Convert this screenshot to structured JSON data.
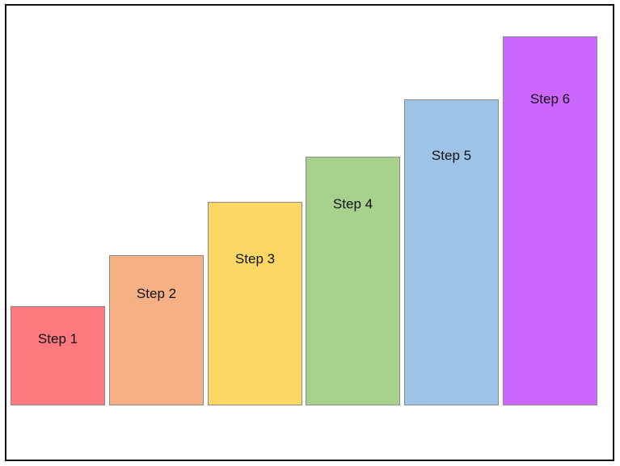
{
  "steps": [
    {
      "label": "Step 1",
      "color": "#fe7a7f"
    },
    {
      "label": "Step 2",
      "color": "#f5b083"
    },
    {
      "label": "Step 3",
      "color": "#fed866"
    },
    {
      "label": "Step 4",
      "color": "#a8d18d"
    },
    {
      "label": "Step 5",
      "color": "#9dc3e7"
    },
    {
      "label": "Step 6",
      "color": "#cc66ff"
    }
  ]
}
